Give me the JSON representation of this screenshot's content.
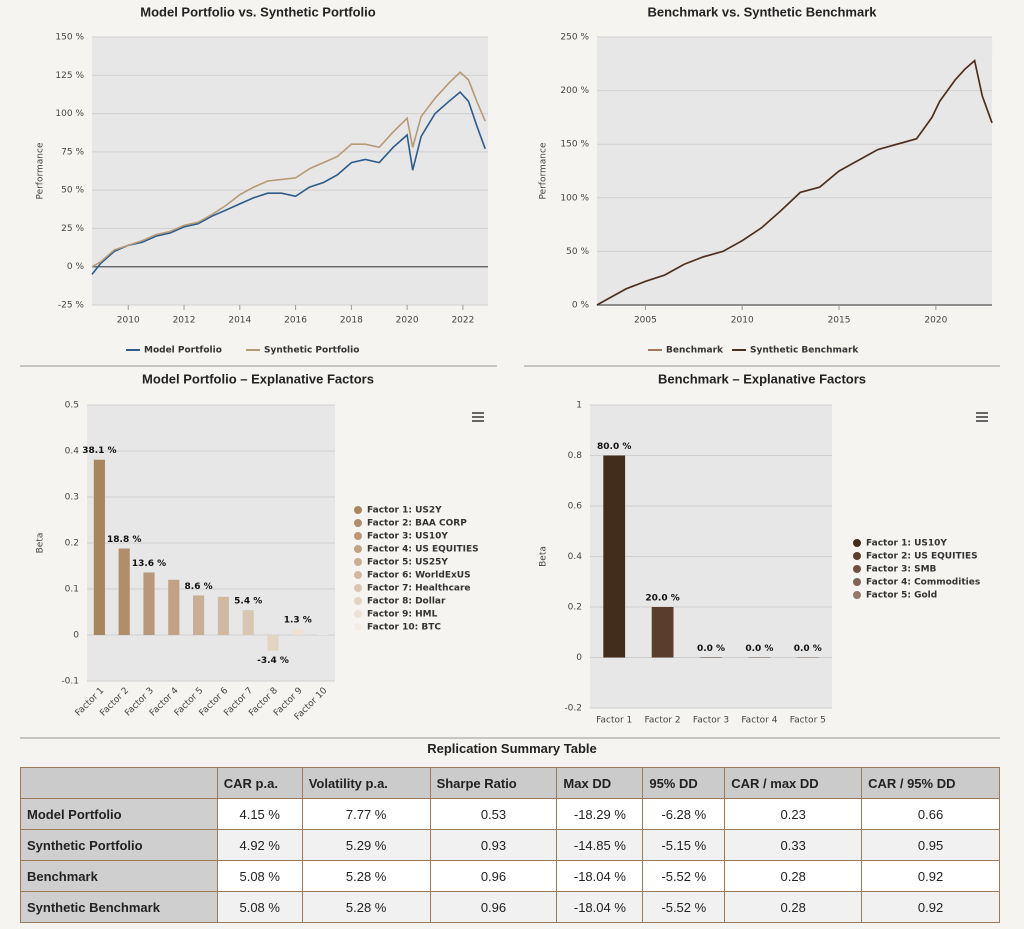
{
  "chart_data": [
    {
      "type": "line",
      "title": "Model Portfolio vs. Synthetic Portfolio",
      "y_label": "Performance",
      "x": [
        2008.7,
        2009.0,
        2009.5,
        2010.0,
        2010.5,
        2011.0,
        2011.5,
        2012.0,
        2012.5,
        2013.0,
        2013.5,
        2014.0,
        2014.5,
        2015.0,
        2015.5,
        2016.0,
        2016.5,
        2017.0,
        2017.5,
        2018.0,
        2018.5,
        2019.0,
        2019.5,
        2020.0,
        2020.2,
        2020.5,
        2021.0,
        2021.5,
        2021.9,
        2022.2,
        2022.5,
        2022.8
      ],
      "series": [
        {
          "name": "Model Portfolio",
          "color": "#2d5b8a",
          "values": [
            -5,
            2,
            10,
            14,
            16,
            20,
            22,
            26,
            28,
            33,
            37,
            41,
            45,
            48,
            48,
            46,
            52,
            55,
            60,
            68,
            70,
            68,
            78,
            86,
            63,
            85,
            100,
            108,
            114,
            108,
            92,
            77
          ]
        },
        {
          "name": "Synthetic Portfolio",
          "color": "#b59a78",
          "values": [
            0,
            3,
            11,
            14,
            17,
            21,
            23,
            27,
            29,
            34,
            40,
            47,
            52,
            56,
            57,
            58,
            64,
            68,
            72,
            80,
            80,
            78,
            88,
            97,
            78,
            98,
            110,
            120,
            127,
            122,
            108,
            95
          ]
        }
      ],
      "xlim": [
        2008.7,
        2022.9
      ],
      "xticks": [
        2010,
        2012,
        2014,
        2016,
        2018,
        2020,
        2022
      ],
      "ylim": [
        -25,
        150
      ],
      "yticks": [
        {
          "value": -25,
          "label": "-25 %"
        },
        {
          "value": 0,
          "label": "0 %"
        },
        {
          "value": 25,
          "label": "25 %"
        },
        {
          "value": 50,
          "label": "50 %"
        },
        {
          "value": 75,
          "label": "75 %"
        },
        {
          "value": 100,
          "label": "100 %"
        },
        {
          "value": 125,
          "label": "125 %"
        },
        {
          "value": 150,
          "label": "150 %"
        }
      ],
      "grid": true
    },
    {
      "type": "line",
      "title": "Benchmark vs. Synthetic Benchmark",
      "y_label": "Performance",
      "x": [
        2002.5,
        2003,
        2004,
        2005,
        2006,
        2007,
        2008,
        2009,
        2010,
        2011,
        2012,
        2013,
        2014,
        2015,
        2016,
        2017,
        2018,
        2019,
        2019.8,
        2020.2,
        2021,
        2021.5,
        2022,
        2022.4,
        2022.9
      ],
      "series": [
        {
          "name": "Benchmark",
          "color": "#a07a5a",
          "values": [
            0,
            5,
            15,
            22,
            28,
            38,
            45,
            50,
            60,
            72,
            88,
            105,
            110,
            125,
            135,
            145,
            150,
            155,
            175,
            190,
            210,
            220,
            228,
            195,
            170
          ]
        },
        {
          "name": "Synthetic Benchmark",
          "color": "#4a3020",
          "values": [
            0,
            5,
            15,
            22,
            28,
            38,
            45,
            50,
            60,
            72,
            88,
            105,
            110,
            125,
            135,
            145,
            150,
            155,
            175,
            190,
            210,
            220,
            228,
            195,
            170
          ]
        }
      ],
      "xlim": [
        2002.5,
        2022.9
      ],
      "xticks": [
        2005,
        2010,
        2015,
        2020
      ],
      "ylim": [
        0,
        250
      ],
      "yticks": [
        {
          "value": 0,
          "label": "0 %"
        },
        {
          "value": 50,
          "label": "50 %"
        },
        {
          "value": 100,
          "label": "100 %"
        },
        {
          "value": 150,
          "label": "150 %"
        },
        {
          "value": 200,
          "label": "200 %"
        },
        {
          "value": 250,
          "label": "250 %"
        }
      ],
      "grid": true
    },
    {
      "type": "bar",
      "title": "Model Portfolio – Explanative Factors",
      "y_label": "Beta",
      "categories": [
        "Factor 1",
        "Factor 2",
        "Factor 3",
        "Factor 4",
        "Factor 5",
        "Factor 6",
        "Factor 7",
        "Factor 8",
        "Factor 9",
        "Factor 10"
      ],
      "values": [
        0.381,
        0.188,
        0.136,
        0.12,
        0.086,
        0.083,
        0.054,
        -0.034,
        0.013,
        0.001
      ],
      "value_labels": [
        "38.1 %",
        "18.8 %",
        "13.6 %",
        null,
        "8.6 %",
        null,
        "5.4 %",
        "-3.4 %",
        "1.3 %",
        null
      ],
      "colors": [
        "#a8855f",
        "#b08e6b",
        "#b89878",
        "#c0a385",
        "#c8ae93",
        "#d0b9a1",
        "#d9c6b1",
        "#e2d4c3",
        "#ebe1d5",
        "#f3ede6"
      ],
      "legend": [
        "Factor 1: US2Y",
        "Factor 2: BAA CORP",
        "Factor 3: US10Y",
        "Factor 4: US EQUITIES",
        "Factor 5: US25Y",
        "Factor 6: WorldExUS",
        "Factor 7: Healthcare",
        "Factor 8: Dollar",
        "Factor 9: HML",
        "Factor 10: BTC"
      ],
      "ylim": [
        -0.1,
        0.5
      ],
      "yticks": [
        -0.1,
        0,
        0.1,
        0.2,
        0.3,
        0.4,
        0.5
      ],
      "grid": true
    },
    {
      "type": "bar",
      "title": "Benchmark – Explanative Factors",
      "y_label": "Beta",
      "categories": [
        "Factor 1",
        "Factor 2",
        "Factor 3",
        "Factor 4",
        "Factor 5"
      ],
      "values": [
        0.8,
        0.2,
        0,
        0,
        0
      ],
      "value_labels": [
        "80.0 %",
        "20.0 %",
        "0.0 %",
        "0.0 %",
        "0.0 %"
      ],
      "colors": [
        "#432c19",
        "#5a3d2a",
        "#6e5040",
        "#826555",
        "#97796a"
      ],
      "legend": [
        "Factor 1: US10Y",
        "Factor 2: US EQUITIES",
        "Factor 3: SMB",
        "Factor 4: Commodities",
        "Factor 5: Gold"
      ],
      "ylim": [
        -0.2,
        1
      ],
      "yticks": [
        -0.2,
        0,
        0.2,
        0.4,
        0.6,
        0.8,
        1
      ],
      "grid": true
    }
  ],
  "table": {
    "title": "Replication Summary Table",
    "columns": [
      "CAR p.a.",
      "Volatility p.a.",
      "Sharpe Ratio",
      "Max DD",
      "95% DD",
      "CAR / max DD",
      "CAR / 95% DD"
    ],
    "rows": [
      {
        "label": "Model Portfolio",
        "cells": [
          "4.15 %",
          "7.77 %",
          "0.53",
          "-18.29 %",
          "-6.28 %",
          "0.23",
          "0.66"
        ]
      },
      {
        "label": "Synthetic Portfolio",
        "cells": [
          "4.92 %",
          "5.29 %",
          "0.93",
          "-14.85 %",
          "-5.15 %",
          "0.33",
          "0.95"
        ]
      },
      {
        "label": "Benchmark",
        "cells": [
          "5.08 %",
          "5.28 %",
          "0.96",
          "-18.04 %",
          "-5.52 %",
          "0.28",
          "0.92"
        ]
      },
      {
        "label": "Synthetic Benchmark",
        "cells": [
          "5.08 %",
          "5.28 %",
          "0.96",
          "-18.04 %",
          "-5.52 %",
          "0.28",
          "0.92"
        ]
      }
    ]
  }
}
